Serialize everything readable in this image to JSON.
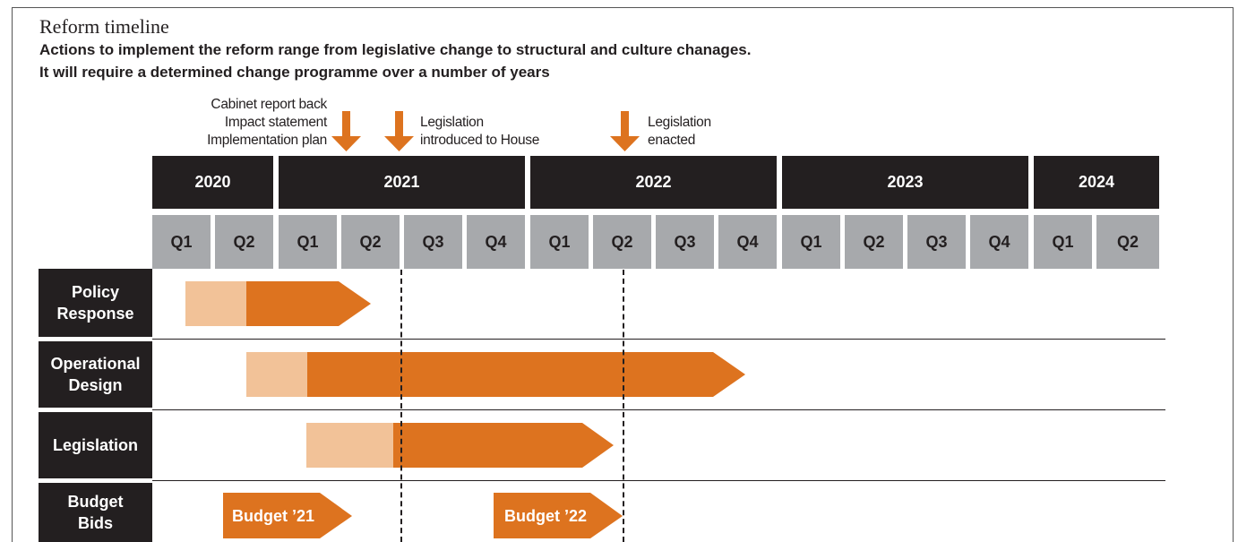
{
  "header": {
    "title": "Reform timeline",
    "subtitle_line1": "Actions to implement the reform range from legislative change to structural and culture chanages.",
    "subtitle_line2": "It will require a determined change programme over a number of years"
  },
  "milestones": {
    "cabinet": {
      "line1": "Cabinet report back",
      "line2": "Impact statement",
      "line3": "Implementation plan"
    },
    "introduced": {
      "line1": "Legislation",
      "line2": "introduced to House"
    },
    "enacted": {
      "line1": "Legislation",
      "line2": "enacted"
    }
  },
  "years": [
    "2020",
    "2021",
    "2022",
    "2023",
    "2024"
  ],
  "quarters": [
    "Q1",
    "Q2",
    "Q1",
    "Q2",
    "Q3",
    "Q4",
    "Q1",
    "Q2",
    "Q3",
    "Q4",
    "Q1",
    "Q2",
    "Q3",
    "Q4",
    "Q1",
    "Q2"
  ],
  "rows": {
    "policy": {
      "line1": "Policy",
      "line2": "Response"
    },
    "operational": {
      "line1": "Operational",
      "line2": "Design"
    },
    "legislation": {
      "label": "Legislation"
    },
    "budget": {
      "line1": "Budget",
      "line2": "Bids"
    }
  },
  "budget_bids": {
    "b21": "Budget ’21",
    "b22": "Budget ’22"
  },
  "colors": {
    "dark": "#231f20",
    "grey": "#a7a9ac",
    "orange": "#dd731f",
    "light_orange": "#f2c298"
  }
}
